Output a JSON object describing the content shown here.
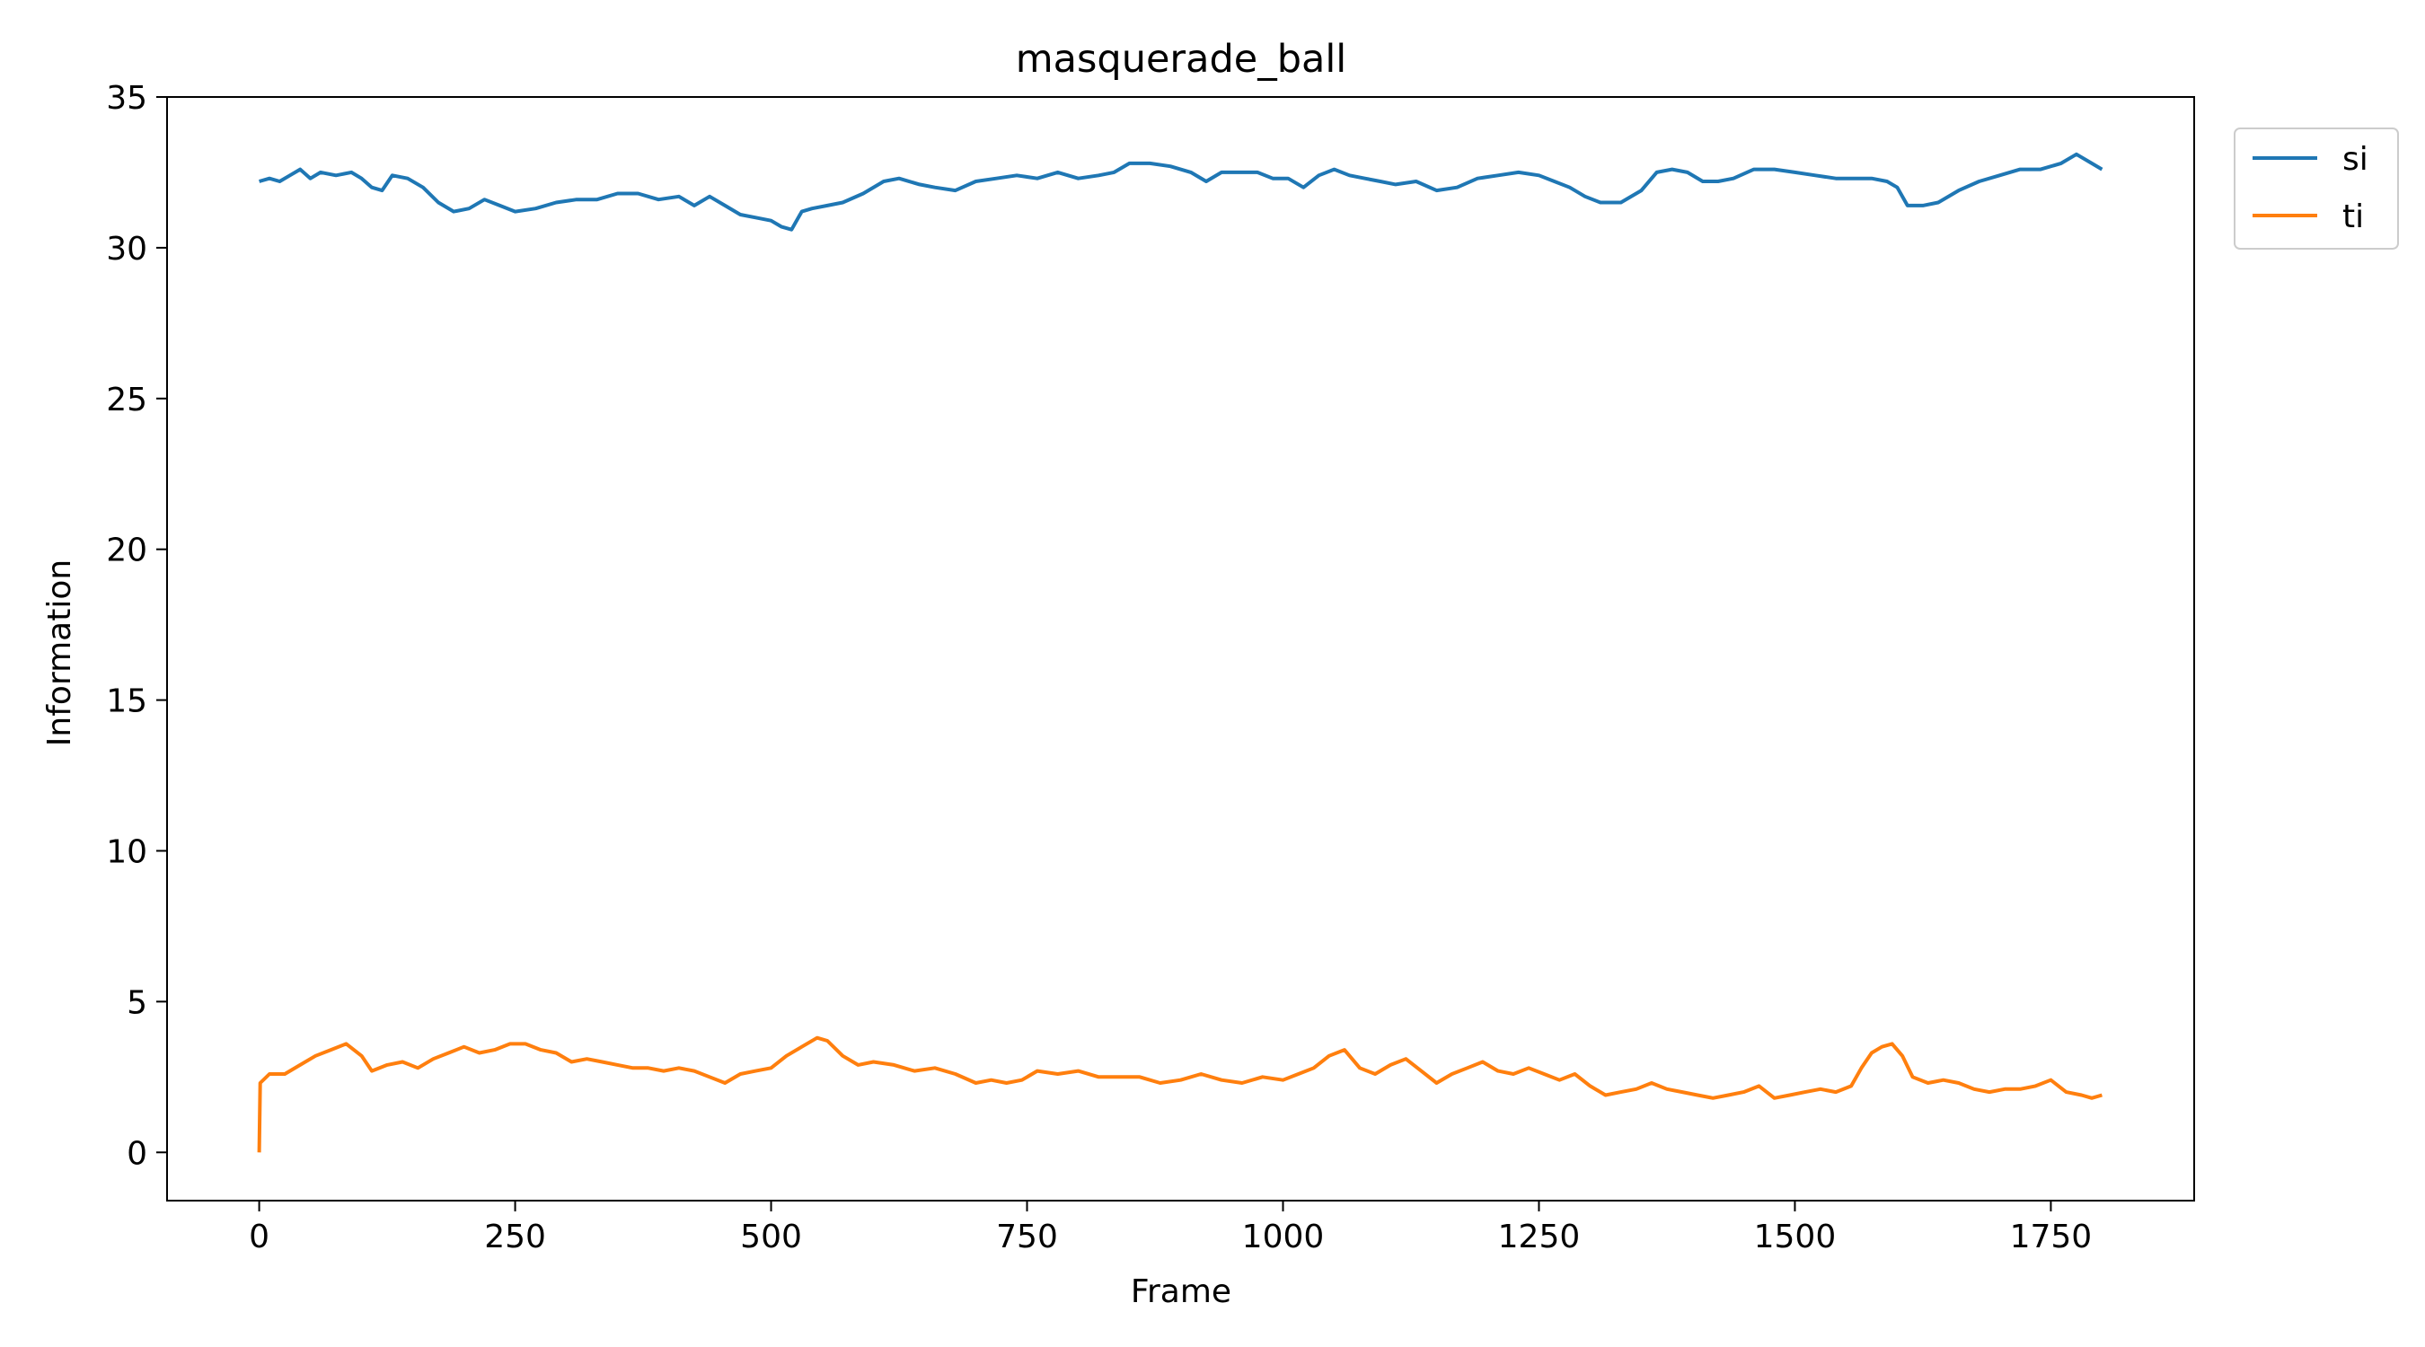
{
  "chart_data": {
    "type": "line",
    "title": "masquerade_ball",
    "xlabel": "Frame",
    "ylabel": "Information",
    "xlim": [
      -90,
      1890
    ],
    "ylim": [
      -1.6,
      35
    ],
    "xticks": [
      0,
      250,
      500,
      750,
      1000,
      1250,
      1500,
      1750
    ],
    "yticks": [
      0,
      5,
      10,
      15,
      20,
      25,
      30,
      35
    ],
    "grid": false,
    "legend_position": "outside-top-right",
    "series": [
      {
        "name": "si",
        "color": "#1f77b4",
        "points": [
          [
            0,
            32.2
          ],
          [
            10,
            32.3
          ],
          [
            20,
            32.2
          ],
          [
            30,
            32.4
          ],
          [
            40,
            32.6
          ],
          [
            50,
            32.3
          ],
          [
            60,
            32.5
          ],
          [
            75,
            32.4
          ],
          [
            90,
            32.5
          ],
          [
            100,
            32.3
          ],
          [
            110,
            32.0
          ],
          [
            120,
            31.9
          ],
          [
            130,
            32.4
          ],
          [
            145,
            32.3
          ],
          [
            160,
            32.0
          ],
          [
            175,
            31.5
          ],
          [
            190,
            31.2
          ],
          [
            205,
            31.3
          ],
          [
            220,
            31.6
          ],
          [
            235,
            31.4
          ],
          [
            250,
            31.2
          ],
          [
            270,
            31.3
          ],
          [
            290,
            31.5
          ],
          [
            310,
            31.6
          ],
          [
            330,
            31.6
          ],
          [
            350,
            31.8
          ],
          [
            370,
            31.8
          ],
          [
            390,
            31.6
          ],
          [
            410,
            31.7
          ],
          [
            425,
            31.4
          ],
          [
            440,
            31.7
          ],
          [
            455,
            31.4
          ],
          [
            470,
            31.1
          ],
          [
            485,
            31.0
          ],
          [
            500,
            30.9
          ],
          [
            510,
            30.7
          ],
          [
            520,
            30.6
          ],
          [
            530,
            31.2
          ],
          [
            540,
            31.3
          ],
          [
            555,
            31.4
          ],
          [
            570,
            31.5
          ],
          [
            590,
            31.8
          ],
          [
            610,
            32.2
          ],
          [
            625,
            32.3
          ],
          [
            645,
            32.1
          ],
          [
            660,
            32.0
          ],
          [
            680,
            31.9
          ],
          [
            700,
            32.2
          ],
          [
            720,
            32.3
          ],
          [
            740,
            32.4
          ],
          [
            760,
            32.3
          ],
          [
            780,
            32.5
          ],
          [
            800,
            32.3
          ],
          [
            820,
            32.4
          ],
          [
            835,
            32.5
          ],
          [
            850,
            32.8
          ],
          [
            870,
            32.8
          ],
          [
            890,
            32.7
          ],
          [
            910,
            32.5
          ],
          [
            925,
            32.2
          ],
          [
            940,
            32.5
          ],
          [
            960,
            32.5
          ],
          [
            975,
            32.5
          ],
          [
            990,
            32.3
          ],
          [
            1005,
            32.3
          ],
          [
            1020,
            32.0
          ],
          [
            1035,
            32.4
          ],
          [
            1050,
            32.6
          ],
          [
            1065,
            32.4
          ],
          [
            1080,
            32.3
          ],
          [
            1095,
            32.2
          ],
          [
            1110,
            32.1
          ],
          [
            1130,
            32.2
          ],
          [
            1150,
            31.9
          ],
          [
            1170,
            32.0
          ],
          [
            1190,
            32.3
          ],
          [
            1210,
            32.4
          ],
          [
            1230,
            32.5
          ],
          [
            1250,
            32.4
          ],
          [
            1265,
            32.2
          ],
          [
            1280,
            32.0
          ],
          [
            1295,
            31.7
          ],
          [
            1310,
            31.5
          ],
          [
            1330,
            31.5
          ],
          [
            1350,
            31.9
          ],
          [
            1365,
            32.5
          ],
          [
            1380,
            32.6
          ],
          [
            1395,
            32.5
          ],
          [
            1410,
            32.2
          ],
          [
            1425,
            32.2
          ],
          [
            1440,
            32.3
          ],
          [
            1460,
            32.6
          ],
          [
            1480,
            32.6
          ],
          [
            1500,
            32.5
          ],
          [
            1520,
            32.4
          ],
          [
            1540,
            32.3
          ],
          [
            1560,
            32.3
          ],
          [
            1575,
            32.3
          ],
          [
            1590,
            32.2
          ],
          [
            1600,
            32.0
          ],
          [
            1610,
            31.4
          ],
          [
            1625,
            31.4
          ],
          [
            1640,
            31.5
          ],
          [
            1660,
            31.9
          ],
          [
            1680,
            32.2
          ],
          [
            1700,
            32.4
          ],
          [
            1720,
            32.6
          ],
          [
            1740,
            32.6
          ],
          [
            1760,
            32.8
          ],
          [
            1775,
            33.1
          ],
          [
            1790,
            32.8
          ],
          [
            1800,
            32.6
          ]
        ]
      },
      {
        "name": "ti",
        "color": "#ff7f0e",
        "points": [
          [
            0,
            0.0
          ],
          [
            1,
            2.3
          ],
          [
            10,
            2.6
          ],
          [
            25,
            2.6
          ],
          [
            40,
            2.9
          ],
          [
            55,
            3.2
          ],
          [
            70,
            3.4
          ],
          [
            85,
            3.6
          ],
          [
            100,
            3.2
          ],
          [
            110,
            2.7
          ],
          [
            125,
            2.9
          ],
          [
            140,
            3.0
          ],
          [
            155,
            2.8
          ],
          [
            170,
            3.1
          ],
          [
            185,
            3.3
          ],
          [
            200,
            3.5
          ],
          [
            215,
            3.3
          ],
          [
            230,
            3.4
          ],
          [
            245,
            3.6
          ],
          [
            260,
            3.6
          ],
          [
            275,
            3.4
          ],
          [
            290,
            3.3
          ],
          [
            305,
            3.0
          ],
          [
            320,
            3.1
          ],
          [
            335,
            3.0
          ],
          [
            350,
            2.9
          ],
          [
            365,
            2.8
          ],
          [
            380,
            2.8
          ],
          [
            395,
            2.7
          ],
          [
            410,
            2.8
          ],
          [
            425,
            2.7
          ],
          [
            440,
            2.5
          ],
          [
            455,
            2.3
          ],
          [
            470,
            2.6
          ],
          [
            485,
            2.7
          ],
          [
            500,
            2.8
          ],
          [
            515,
            3.2
          ],
          [
            530,
            3.5
          ],
          [
            545,
            3.8
          ],
          [
            555,
            3.7
          ],
          [
            570,
            3.2
          ],
          [
            585,
            2.9
          ],
          [
            600,
            3.0
          ],
          [
            620,
            2.9
          ],
          [
            640,
            2.7
          ],
          [
            660,
            2.8
          ],
          [
            680,
            2.6
          ],
          [
            700,
            2.3
          ],
          [
            715,
            2.4
          ],
          [
            730,
            2.3
          ],
          [
            745,
            2.4
          ],
          [
            760,
            2.7
          ],
          [
            780,
            2.6
          ],
          [
            800,
            2.7
          ],
          [
            820,
            2.5
          ],
          [
            840,
            2.5
          ],
          [
            860,
            2.5
          ],
          [
            880,
            2.3
          ],
          [
            900,
            2.4
          ],
          [
            920,
            2.6
          ],
          [
            940,
            2.4
          ],
          [
            960,
            2.3
          ],
          [
            980,
            2.5
          ],
          [
            1000,
            2.4
          ],
          [
            1015,
            2.6
          ],
          [
            1030,
            2.8
          ],
          [
            1045,
            3.2
          ],
          [
            1060,
            3.4
          ],
          [
            1075,
            2.8
          ],
          [
            1090,
            2.6
          ],
          [
            1105,
            2.9
          ],
          [
            1120,
            3.1
          ],
          [
            1135,
            2.7
          ],
          [
            1150,
            2.3
          ],
          [
            1165,
            2.6
          ],
          [
            1180,
            2.8
          ],
          [
            1195,
            3.0
          ],
          [
            1210,
            2.7
          ],
          [
            1225,
            2.6
          ],
          [
            1240,
            2.8
          ],
          [
            1255,
            2.6
          ],
          [
            1270,
            2.4
          ],
          [
            1285,
            2.6
          ],
          [
            1300,
            2.2
          ],
          [
            1315,
            1.9
          ],
          [
            1330,
            2.0
          ],
          [
            1345,
            2.1
          ],
          [
            1360,
            2.3
          ],
          [
            1375,
            2.1
          ],
          [
            1390,
            2.0
          ],
          [
            1405,
            1.9
          ],
          [
            1420,
            1.8
          ],
          [
            1435,
            1.9
          ],
          [
            1450,
            2.0
          ],
          [
            1465,
            2.2
          ],
          [
            1480,
            1.8
          ],
          [
            1495,
            1.9
          ],
          [
            1510,
            2.0
          ],
          [
            1525,
            2.1
          ],
          [
            1540,
            2.0
          ],
          [
            1555,
            2.2
          ],
          [
            1565,
            2.8
          ],
          [
            1575,
            3.3
          ],
          [
            1585,
            3.5
          ],
          [
            1595,
            3.6
          ],
          [
            1605,
            3.2
          ],
          [
            1615,
            2.5
          ],
          [
            1630,
            2.3
          ],
          [
            1645,
            2.4
          ],
          [
            1660,
            2.3
          ],
          [
            1675,
            2.1
          ],
          [
            1690,
            2.0
          ],
          [
            1705,
            2.1
          ],
          [
            1720,
            2.1
          ],
          [
            1735,
            2.2
          ],
          [
            1750,
            2.4
          ],
          [
            1765,
            2.0
          ],
          [
            1780,
            1.9
          ],
          [
            1790,
            1.8
          ],
          [
            1800,
            1.9
          ]
        ]
      }
    ]
  }
}
